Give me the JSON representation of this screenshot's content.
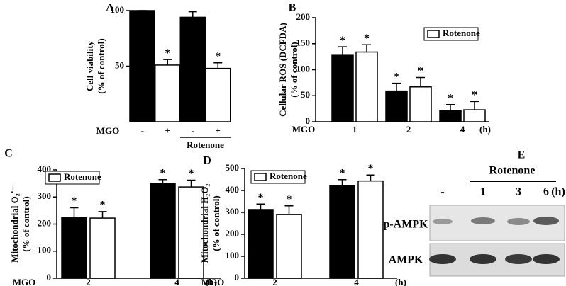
{
  "chart_data": [
    {
      "type": "bar",
      "label": "A",
      "ylabel": [
        "Cell viability",
        "(% of control)"
      ],
      "xlabel": "MGO",
      "categories": [
        "-",
        "+",
        "-",
        "+"
      ],
      "group_label": "Rotenone",
      "values": [
        100,
        51,
        94,
        48
      ],
      "errors": [
        0,
        5,
        5,
        5
      ],
      "stars": [
        null,
        "*",
        null,
        "*"
      ],
      "colors": [
        "#000000",
        "#ffffff",
        "#000000",
        "#ffffff"
      ],
      "ylim": [
        0,
        100
      ],
      "yticks": [
        50,
        100
      ]
    },
    {
      "type": "bar",
      "label": "B",
      "ylabel": [
        "Cellular ROS (DCFDA)",
        "(% of control)"
      ],
      "xlabel": "MGO",
      "xunit": "(h)",
      "categories": [
        "1",
        "2",
        "4"
      ],
      "series": [
        {
          "color": "#000000",
          "values": [
            129,
            59,
            22
          ],
          "errors": [
            15,
            15,
            11
          ],
          "stars": [
            "*",
            "*",
            "*"
          ]
        },
        {
          "name": "Rotenone",
          "color": "#ffffff",
          "values": [
            134,
            67,
            23
          ],
          "errors": [
            14,
            18,
            16
          ],
          "stars": [
            "*",
            "*",
            "*"
          ]
        }
      ],
      "ylim": [
        0,
        200
      ],
      "yticks": [
        0,
        50,
        100,
        150,
        200
      ]
    },
    {
      "type": "bar",
      "label": "C",
      "ylabel": [
        "Mitochondrial O₂˙⁻",
        "(% of control)"
      ],
      "xlabel": "MGO",
      "xunit": "(h)",
      "categories": [
        "2",
        "4"
      ],
      "series": [
        {
          "color": "#000000",
          "values": [
            223,
            350
          ],
          "errors": [
            37,
            14
          ],
          "stars": [
            "*",
            "*"
          ]
        },
        {
          "name": "Rotenone",
          "color": "#ffffff",
          "values": [
            222,
            337
          ],
          "errors": [
            24,
            25
          ],
          "stars": [
            "*",
            "*"
          ]
        }
      ],
      "ylim": [
        0,
        400
      ],
      "yticks": [
        0,
        100,
        200,
        300,
        400
      ]
    },
    {
      "type": "bar",
      "label": "D",
      "ylabel": [
        "Mitochondrial H₂O₂",
        "(% of control)"
      ],
      "xlabel": "MGO",
      "xunit": "(h)",
      "categories": [
        "2",
        "4"
      ],
      "series": [
        {
          "color": "#000000",
          "values": [
            313,
            422
          ],
          "errors": [
            25,
            27
          ],
          "stars": [
            "*",
            "*"
          ]
        },
        {
          "name": "Rotenone",
          "color": "#ffffff",
          "values": [
            290,
            443
          ],
          "errors": [
            40,
            27
          ],
          "stars": [
            "*",
            "*"
          ]
        }
      ],
      "ylim": [
        0,
        500
      ],
      "yticks": [
        0,
        100,
        200,
        300,
        400,
        500
      ]
    }
  ],
  "blot": {
    "letter": "E",
    "treatment": "Rotenone",
    "lanes": [
      "-",
      "1",
      "3",
      "6"
    ],
    "unit": "(h)",
    "rows": [
      "p-AMPK",
      "AMPK"
    ]
  }
}
